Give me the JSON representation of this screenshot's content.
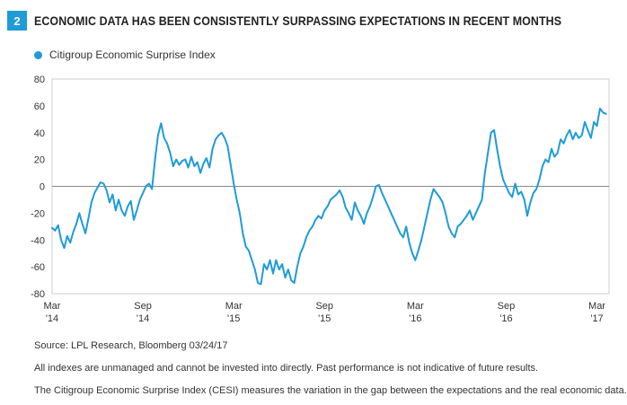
{
  "header": {
    "badge": "2",
    "title": "ECONOMIC DATA HAS BEEN CONSISTENTLY SURPASSING EXPECTATIONS IN RECENT MONTHS"
  },
  "colors": {
    "accent": "#1f9bd7",
    "grid": "#cccccc",
    "zero_line": "#888888"
  },
  "chart_data": {
    "type": "line",
    "title": "ECONOMIC DATA HAS BEEN CONSISTENTLY SURPASSING EXPECTATIONS IN RECENT MONTHS",
    "xlabel": "",
    "ylabel": "",
    "ylim": [
      -80,
      80
    ],
    "yticks": [
      80,
      60,
      40,
      20,
      0,
      -20,
      -40,
      -60,
      -80
    ],
    "xlim": [
      0,
      36.8
    ],
    "x_unit": "months since Mar 2014",
    "xticks": [
      {
        "x": 0,
        "line1": "Mar",
        "line2": "'14"
      },
      {
        "x": 6,
        "line1": "Sep",
        "line2": "'14"
      },
      {
        "x": 12,
        "line1": "Mar",
        "line2": "'15"
      },
      {
        "x": 18,
        "line1": "Sep",
        "line2": "'15"
      },
      {
        "x": 24,
        "line1": "Mar",
        "line2": "'16"
      },
      {
        "x": 30,
        "line1": "Sep",
        "line2": "'16"
      },
      {
        "x": 36,
        "line1": "Mar",
        "line2": "'17"
      }
    ],
    "legend_position": "top-left",
    "series": [
      {
        "name": "Citigroup Economic Surprise Index",
        "points": [
          [
            0.0,
            -31
          ],
          [
            0.2,
            -33
          ],
          [
            0.4,
            -29
          ],
          [
            0.6,
            -40
          ],
          [
            0.8,
            -46
          ],
          [
            1.0,
            -37
          ],
          [
            1.2,
            -42
          ],
          [
            1.4,
            -34
          ],
          [
            1.6,
            -28
          ],
          [
            1.8,
            -20
          ],
          [
            2.0,
            -28
          ],
          [
            2.2,
            -35
          ],
          [
            2.4,
            -24
          ],
          [
            2.6,
            -12
          ],
          [
            2.8,
            -5
          ],
          [
            3.0,
            -1
          ],
          [
            3.2,
            3
          ],
          [
            3.4,
            2
          ],
          [
            3.6,
            -3
          ],
          [
            3.8,
            -12
          ],
          [
            4.0,
            -6
          ],
          [
            4.2,
            -18
          ],
          [
            4.4,
            -10
          ],
          [
            4.6,
            -18
          ],
          [
            4.8,
            -22
          ],
          [
            5.0,
            -15
          ],
          [
            5.2,
            -11
          ],
          [
            5.4,
            -25
          ],
          [
            5.6,
            -18
          ],
          [
            5.8,
            -10
          ],
          [
            6.0,
            -5
          ],
          [
            6.2,
            0
          ],
          [
            6.4,
            2
          ],
          [
            6.6,
            -2
          ],
          [
            6.8,
            20
          ],
          [
            7.0,
            38
          ],
          [
            7.2,
            47
          ],
          [
            7.4,
            36
          ],
          [
            7.6,
            32
          ],
          [
            7.8,
            25
          ],
          [
            8.0,
            15
          ],
          [
            8.2,
            20
          ],
          [
            8.4,
            16
          ],
          [
            8.6,
            19
          ],
          [
            8.8,
            20
          ],
          [
            9.0,
            14
          ],
          [
            9.2,
            22
          ],
          [
            9.4,
            15
          ],
          [
            9.6,
            18
          ],
          [
            9.8,
            10
          ],
          [
            10.0,
            17
          ],
          [
            10.2,
            21
          ],
          [
            10.4,
            14
          ],
          [
            10.6,
            28
          ],
          [
            10.8,
            35
          ],
          [
            11.0,
            38
          ],
          [
            11.2,
            40
          ],
          [
            11.4,
            36
          ],
          [
            11.6,
            30
          ],
          [
            11.8,
            16
          ],
          [
            12.0,
            2
          ],
          [
            12.2,
            -10
          ],
          [
            12.4,
            -20
          ],
          [
            12.6,
            -35
          ],
          [
            12.8,
            -45
          ],
          [
            13.0,
            -48
          ],
          [
            13.2,
            -55
          ],
          [
            13.4,
            -62
          ],
          [
            13.6,
            -72
          ],
          [
            13.8,
            -73
          ],
          [
            14.0,
            -58
          ],
          [
            14.2,
            -62
          ],
          [
            14.4,
            -55
          ],
          [
            14.6,
            -65
          ],
          [
            14.8,
            -55
          ],
          [
            15.0,
            -62
          ],
          [
            15.2,
            -58
          ],
          [
            15.4,
            -68
          ],
          [
            15.6,
            -62
          ],
          [
            15.8,
            -70
          ],
          [
            16.0,
            -72
          ],
          [
            16.2,
            -60
          ],
          [
            16.4,
            -50
          ],
          [
            16.6,
            -45
          ],
          [
            16.8,
            -38
          ],
          [
            17.0,
            -33
          ],
          [
            17.2,
            -30
          ],
          [
            17.4,
            -25
          ],
          [
            17.6,
            -22
          ],
          [
            17.8,
            -24
          ],
          [
            18.0,
            -18
          ],
          [
            18.2,
            -15
          ],
          [
            18.4,
            -10
          ],
          [
            18.6,
            -8
          ],
          [
            18.8,
            -6
          ],
          [
            19.0,
            -3
          ],
          [
            19.2,
            -8
          ],
          [
            19.4,
            -16
          ],
          [
            19.6,
            -20
          ],
          [
            19.8,
            -25
          ],
          [
            20.0,
            -12
          ],
          [
            20.2,
            -18
          ],
          [
            20.4,
            -22
          ],
          [
            20.6,
            -28
          ],
          [
            20.8,
            -20
          ],
          [
            21.0,
            -15
          ],
          [
            21.2,
            -8
          ],
          [
            21.4,
            0
          ],
          [
            21.6,
            1
          ],
          [
            21.8,
            -5
          ],
          [
            22.0,
            -10
          ],
          [
            22.2,
            -15
          ],
          [
            22.4,
            -20
          ],
          [
            22.6,
            -25
          ],
          [
            22.8,
            -30
          ],
          [
            23.0,
            -35
          ],
          [
            23.2,
            -38
          ],
          [
            23.4,
            -30
          ],
          [
            23.6,
            -42
          ],
          [
            23.8,
            -50
          ],
          [
            24.0,
            -55
          ],
          [
            24.2,
            -48
          ],
          [
            24.4,
            -40
          ],
          [
            24.6,
            -30
          ],
          [
            24.8,
            -20
          ],
          [
            25.0,
            -10
          ],
          [
            25.2,
            -2
          ],
          [
            25.4,
            -5
          ],
          [
            25.6,
            -8
          ],
          [
            25.8,
            -12
          ],
          [
            26.0,
            -20
          ],
          [
            26.2,
            -30
          ],
          [
            26.4,
            -35
          ],
          [
            26.6,
            -38
          ],
          [
            26.8,
            -30
          ],
          [
            27.0,
            -28
          ],
          [
            27.2,
            -25
          ],
          [
            27.4,
            -22
          ],
          [
            27.6,
            -18
          ],
          [
            27.8,
            -25
          ],
          [
            28.0,
            -20
          ],
          [
            28.2,
            -15
          ],
          [
            28.4,
            -10
          ],
          [
            28.6,
            10
          ],
          [
            28.8,
            25
          ],
          [
            29.0,
            40
          ],
          [
            29.2,
            42
          ],
          [
            29.4,
            28
          ],
          [
            29.6,
            15
          ],
          [
            29.8,
            5
          ],
          [
            30.0,
            0
          ],
          [
            30.2,
            -5
          ],
          [
            30.4,
            -8
          ],
          [
            30.6,
            2
          ],
          [
            30.8,
            -6
          ],
          [
            31.0,
            -4
          ],
          [
            31.2,
            -10
          ],
          [
            31.4,
            -22
          ],
          [
            31.6,
            -12
          ],
          [
            31.8,
            -5
          ],
          [
            32.0,
            -2
          ],
          [
            32.2,
            5
          ],
          [
            32.4,
            15
          ],
          [
            32.6,
            20
          ],
          [
            32.8,
            18
          ],
          [
            33.0,
            28
          ],
          [
            33.2,
            22
          ],
          [
            33.4,
            25
          ],
          [
            33.6,
            35
          ],
          [
            33.8,
            32
          ],
          [
            34.0,
            38
          ],
          [
            34.2,
            42
          ],
          [
            34.4,
            35
          ],
          [
            34.6,
            40
          ],
          [
            34.8,
            36
          ],
          [
            35.0,
            38
          ],
          [
            35.2,
            48
          ],
          [
            35.4,
            42
          ],
          [
            35.6,
            36
          ],
          [
            35.8,
            48
          ],
          [
            36.0,
            45
          ],
          [
            36.2,
            58
          ],
          [
            36.4,
            55
          ],
          [
            36.6,
            54
          ]
        ]
      }
    ]
  },
  "notes": {
    "source": "Source: LPL Research, Bloomberg   03/24/17",
    "disclaimer": "All indexes are unmanaged and cannot be invested into directly. Past performance is not indicative of future results.",
    "definition": "The Citigroup Economic Surprise Index (CESI) measures the variation in the gap between the expectations and the real economic data."
  }
}
